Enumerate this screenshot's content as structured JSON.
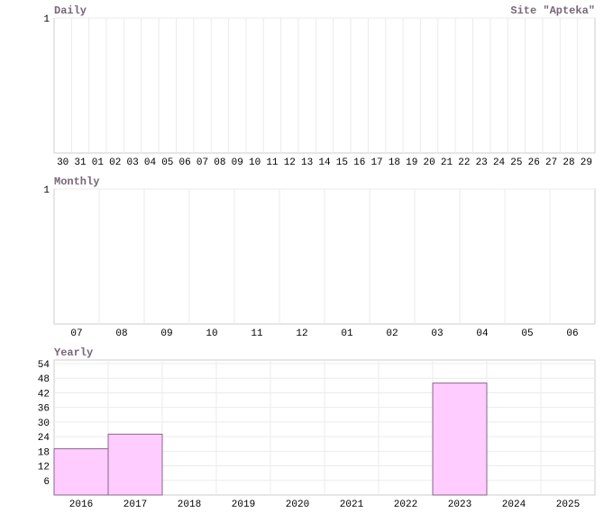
{
  "site_title": "Site \"Apteka\"",
  "chart_data": [
    {
      "type": "bar",
      "title": "Daily",
      "categories": [
        "30",
        "31",
        "01",
        "02",
        "03",
        "04",
        "05",
        "06",
        "07",
        "08",
        "09",
        "10",
        "11",
        "12",
        "13",
        "14",
        "15",
        "16",
        "17",
        "18",
        "19",
        "20",
        "21",
        "22",
        "23",
        "24",
        "25",
        "26",
        "27",
        "28",
        "29"
      ],
      "values": [
        0,
        0,
        0,
        0,
        0,
        0,
        0,
        0,
        0,
        0,
        0,
        0,
        0,
        0,
        0,
        0,
        0,
        0,
        0,
        0,
        0,
        0,
        0,
        0,
        0,
        0,
        0,
        0,
        0,
        0,
        0
      ],
      "color": "#ffccff",
      "ylim": [
        0,
        1
      ],
      "yticks": [
        1
      ],
      "grid": true
    },
    {
      "type": "bar",
      "title": "Monthly",
      "categories": [
        "07",
        "08",
        "09",
        "10",
        "11",
        "12",
        "01",
        "02",
        "03",
        "04",
        "05",
        "06"
      ],
      "values": [
        0,
        0,
        0,
        0,
        0,
        0,
        0,
        0,
        0,
        0,
        0,
        0
      ],
      "color": "#ffccff",
      "ylim": [
        0,
        1
      ],
      "yticks": [
        1
      ],
      "grid": true
    },
    {
      "type": "bar",
      "title": "Yearly",
      "categories": [
        "2016",
        "2017",
        "2018",
        "2019",
        "2020",
        "2021",
        "2022",
        "2023",
        "2024",
        "2025"
      ],
      "values": [
        19,
        25,
        0,
        0,
        0,
        0,
        0,
        46,
        0,
        0
      ],
      "color": "#ffccff",
      "ylim": [
        0,
        54
      ],
      "yticks": [
        6,
        12,
        18,
        24,
        30,
        36,
        42,
        48,
        54
      ],
      "grid": true
    }
  ]
}
